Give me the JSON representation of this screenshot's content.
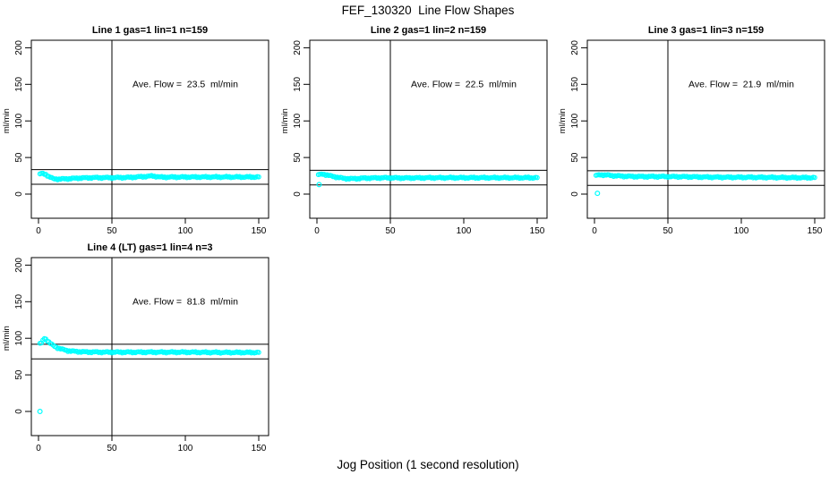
{
  "title": "FEF_130320  Line Flow Shapes",
  "xlabel": "Jog Position (1 second resolution)",
  "colors": {
    "points": "#00ffff",
    "axis": "#000000",
    "background": "#ffffff"
  },
  "chart_data": [
    {
      "type": "scatter",
      "title": "Line 1 gas=1 lin=1 n=159",
      "n": 159,
      "annotation": "Ave. Flow =  23.5  ml/min",
      "ave_flow_ml_min": 23.5,
      "ylabel": "ml/min",
      "xlim": [
        0,
        150
      ],
      "ylim": [
        0,
        200
      ],
      "xticks": [
        0,
        50,
        100,
        150
      ],
      "yticks": [
        0,
        50,
        100,
        150,
        200
      ],
      "vline_x": 50,
      "hlines": [
        33.5,
        13.5
      ],
      "points": [
        [
          1,
          27.5
        ],
        [
          3,
          28
        ],
        [
          5,
          27
        ],
        [
          7,
          24
        ],
        [
          10,
          21
        ],
        [
          14,
          20.5
        ],
        [
          20,
          21
        ],
        [
          28,
          22
        ],
        [
          38,
          22.5
        ],
        [
          50,
          22.5
        ],
        [
          62,
          22.8
        ],
        [
          72,
          24
        ],
        [
          78,
          24.8
        ],
        [
          83,
          23.2
        ],
        [
          95,
          23.3
        ],
        [
          110,
          23.4
        ],
        [
          125,
          23.4
        ],
        [
          150,
          23.4
        ]
      ],
      "outliers": []
    },
    {
      "type": "scatter",
      "title": "Line 2 gas=1 lin=2 n=159",
      "n": 159,
      "annotation": "Ave. Flow =  22.5  ml/min",
      "ave_flow_ml_min": 22.5,
      "ylabel": "ml/min",
      "xlim": [
        0,
        150
      ],
      "ylim": [
        0,
        200
      ],
      "xticks": [
        0,
        50,
        100,
        150
      ],
      "yticks": [
        0,
        50,
        100,
        150,
        200
      ],
      "vline_x": 50,
      "hlines": [
        32.5,
        12.5
      ],
      "points": [
        [
          2,
          26.5
        ],
        [
          4,
          27.5
        ],
        [
          7,
          26
        ],
        [
          10,
          24.5
        ],
        [
          14,
          23
        ],
        [
          18,
          21.5
        ],
        [
          24,
          21
        ],
        [
          32,
          21.8
        ],
        [
          45,
          22.3
        ],
        [
          60,
          22
        ],
        [
          75,
          22.3
        ],
        [
          90,
          22.4
        ],
        [
          110,
          22.4
        ],
        [
          130,
          22.4
        ],
        [
          150,
          22.4
        ]
      ],
      "outliers": [
        [
          1.5,
          13
        ]
      ]
    },
    {
      "type": "scatter",
      "title": "Line 3 gas=1 lin=3 n=159",
      "n": 159,
      "annotation": "Ave. Flow =  21.9  ml/min",
      "ave_flow_ml_min": 21.9,
      "ylabel": "ml/min",
      "xlim": [
        0,
        150
      ],
      "ylim": [
        0,
        200
      ],
      "xticks": [
        0,
        50,
        100,
        150
      ],
      "yticks": [
        0,
        50,
        100,
        150,
        200
      ],
      "vline_x": 50,
      "hlines": [
        31.9,
        11.9
      ],
      "points": [
        [
          2,
          25.5
        ],
        [
          4,
          26.5
        ],
        [
          8,
          26
        ],
        [
          14,
          25
        ],
        [
          22,
          24.3
        ],
        [
          32,
          24
        ],
        [
          45,
          24
        ],
        [
          60,
          23.8
        ],
        [
          75,
          23.3
        ],
        [
          90,
          23
        ],
        [
          105,
          23
        ],
        [
          120,
          22.8
        ],
        [
          135,
          22.5
        ],
        [
          150,
          22.5
        ]
      ],
      "outliers": [
        [
          2,
          1
        ]
      ]
    },
    {
      "type": "scatter",
      "title": "Line 4 (LT) gas=1 lin=4 n=3",
      "n": 3,
      "annotation": "Ave. Flow =  81.8  ml/min",
      "ave_flow_ml_min": 81.8,
      "ylabel": "ml/min",
      "xlim": [
        0,
        150
      ],
      "ylim": [
        0,
        200
      ],
      "xticks": [
        0,
        50,
        100,
        150
      ],
      "yticks": [
        0,
        50,
        100,
        150,
        200
      ],
      "vline_x": 50,
      "hlines": [
        91.8,
        71.8
      ],
      "points": [
        [
          2,
          93
        ],
        [
          3,
          97
        ],
        [
          4,
          100
        ],
        [
          5,
          99
        ],
        [
          6,
          97
        ],
        [
          8,
          93
        ],
        [
          10,
          90
        ],
        [
          13,
          87
        ],
        [
          16,
          85
        ],
        [
          20,
          83
        ],
        [
          25,
          82
        ],
        [
          32,
          81.3
        ],
        [
          45,
          81
        ],
        [
          60,
          81
        ],
        [
          80,
          81
        ],
        [
          100,
          81
        ],
        [
          125,
          80.6
        ],
        [
          150,
          80.6
        ]
      ],
      "outliers": [
        [
          1,
          0
        ]
      ]
    }
  ]
}
